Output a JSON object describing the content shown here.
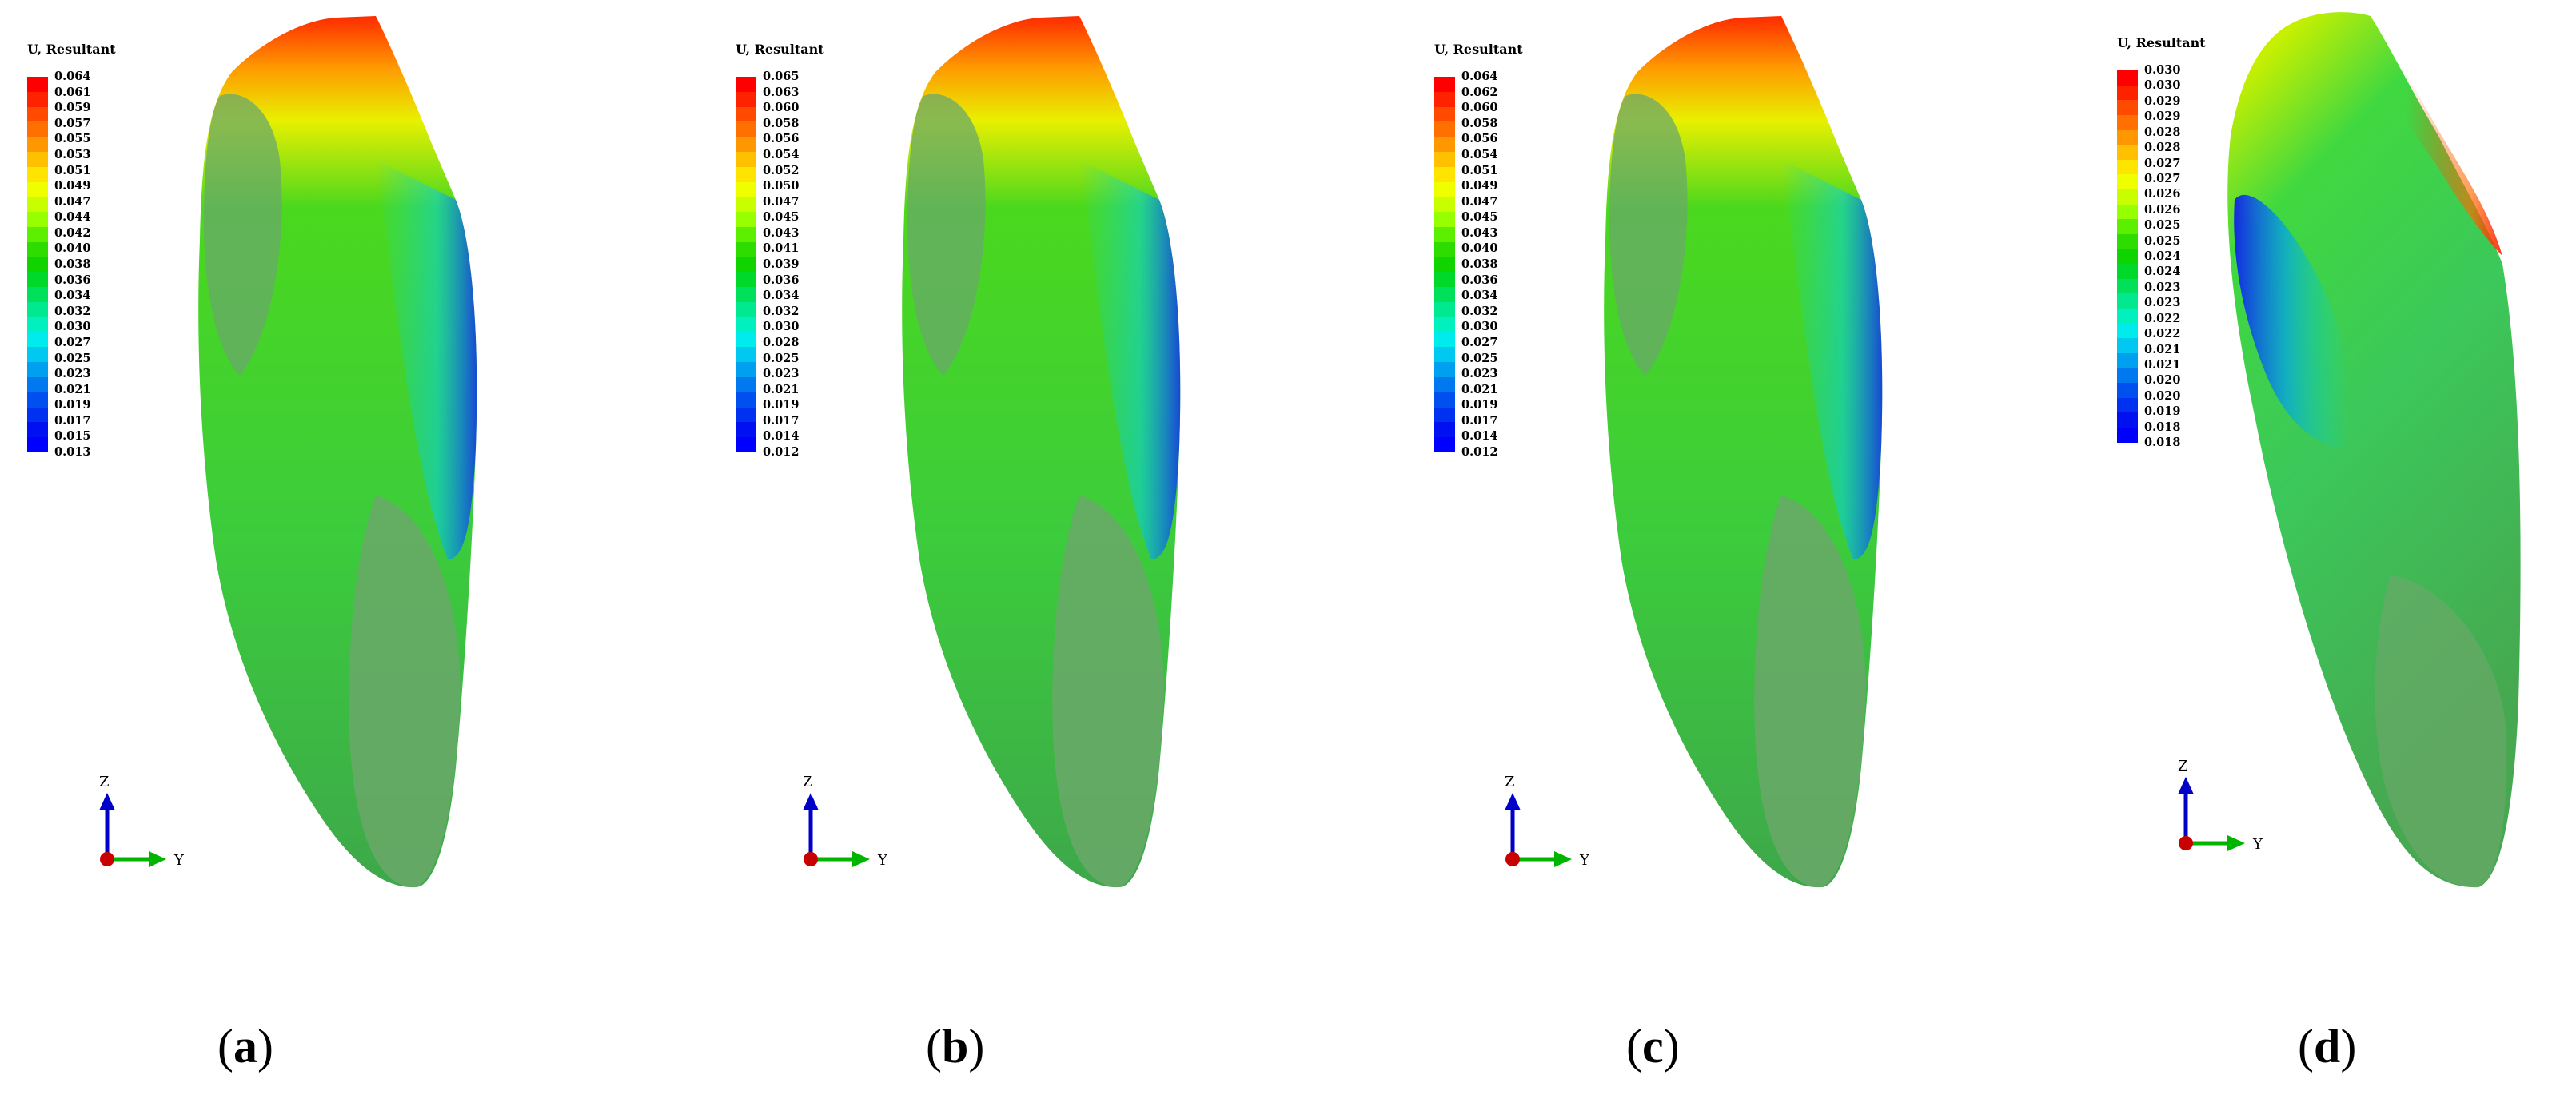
{
  "panels": [
    {
      "legend_title": "U, Resultant",
      "legend_values": [
        "0.064",
        "0.061",
        "0.059",
        "0.057",
        "0.055",
        "0.053",
        "0.051",
        "0.049",
        "0.047",
        "0.044",
        "0.042",
        "0.040",
        "0.038",
        "0.036",
        "0.034",
        "0.032",
        "0.030",
        "0.027",
        "0.025",
        "0.023",
        "0.021",
        "0.019",
        "0.017",
        "0.015",
        "0.013"
      ],
      "caption_open": "(",
      "caption_letter": "a",
      "caption_close": ")",
      "axis_z": "Z",
      "axis_y": "Y"
    },
    {
      "legend_title": "U, Resultant",
      "legend_values": [
        "0.065",
        "0.063",
        "0.060",
        "0.058",
        "0.056",
        "0.054",
        "0.052",
        "0.050",
        "0.047",
        "0.045",
        "0.043",
        "0.041",
        "0.039",
        "0.036",
        "0.034",
        "0.032",
        "0.030",
        "0.028",
        "0.025",
        "0.023",
        "0.021",
        "0.019",
        "0.017",
        "0.014",
        "0.012"
      ],
      "caption_open": "(",
      "caption_letter": "b",
      "caption_close": ")",
      "axis_z": "Z",
      "axis_y": "Y"
    },
    {
      "legend_title": "U, Resultant",
      "legend_values": [
        "0.064",
        "0.062",
        "0.060",
        "0.058",
        "0.056",
        "0.054",
        "0.051",
        "0.049",
        "0.047",
        "0.045",
        "0.043",
        "0.040",
        "0.038",
        "0.036",
        "0.034",
        "0.032",
        "0.030",
        "0.027",
        "0.025",
        "0.023",
        "0.021",
        "0.019",
        "0.017",
        "0.014",
        "0.012"
      ],
      "caption_open": "(",
      "caption_letter": "c",
      "caption_close": ")",
      "axis_z": "Z",
      "axis_y": "Y"
    },
    {
      "legend_title": "U, Resultant",
      "legend_values": [
        "0.030",
        "0.030",
        "0.029",
        "0.029",
        "0.028",
        "0.028",
        "0.027",
        "0.027",
        "0.026",
        "0.026",
        "0.025",
        "0.025",
        "0.024",
        "0.024",
        "0.023",
        "0.023",
        "0.022",
        "0.022",
        "0.021",
        "0.021",
        "0.020",
        "0.020",
        "0.019",
        "0.018",
        "0.018"
      ],
      "caption_open": "(",
      "caption_letter": "d",
      "caption_close": ")",
      "axis_z": "Z",
      "axis_y": "Y"
    }
  ],
  "colors": {
    "contour_scale": [
      "#ff0000",
      "#ff2200",
      "#ff4a00",
      "#ff7000",
      "#ff9800",
      "#ffc000",
      "#ffe400",
      "#f0ff00",
      "#c8ff00",
      "#96ff00",
      "#5cf000",
      "#2edc00",
      "#10d400",
      "#00d82a",
      "#00e05a",
      "#00e890",
      "#00f0c0",
      "#00ecec",
      "#00c8f0",
      "#00a0f0",
      "#0078f0",
      "#0050f0",
      "#0030f0",
      "#0010f0",
      "#0000ff"
    ],
    "tooth_base": "#5ab84f",
    "tooth_shade": "#6aa86a",
    "axis_z": "#0000c8",
    "axis_y": "#00b400",
    "axis_origin": "#c80000"
  }
}
